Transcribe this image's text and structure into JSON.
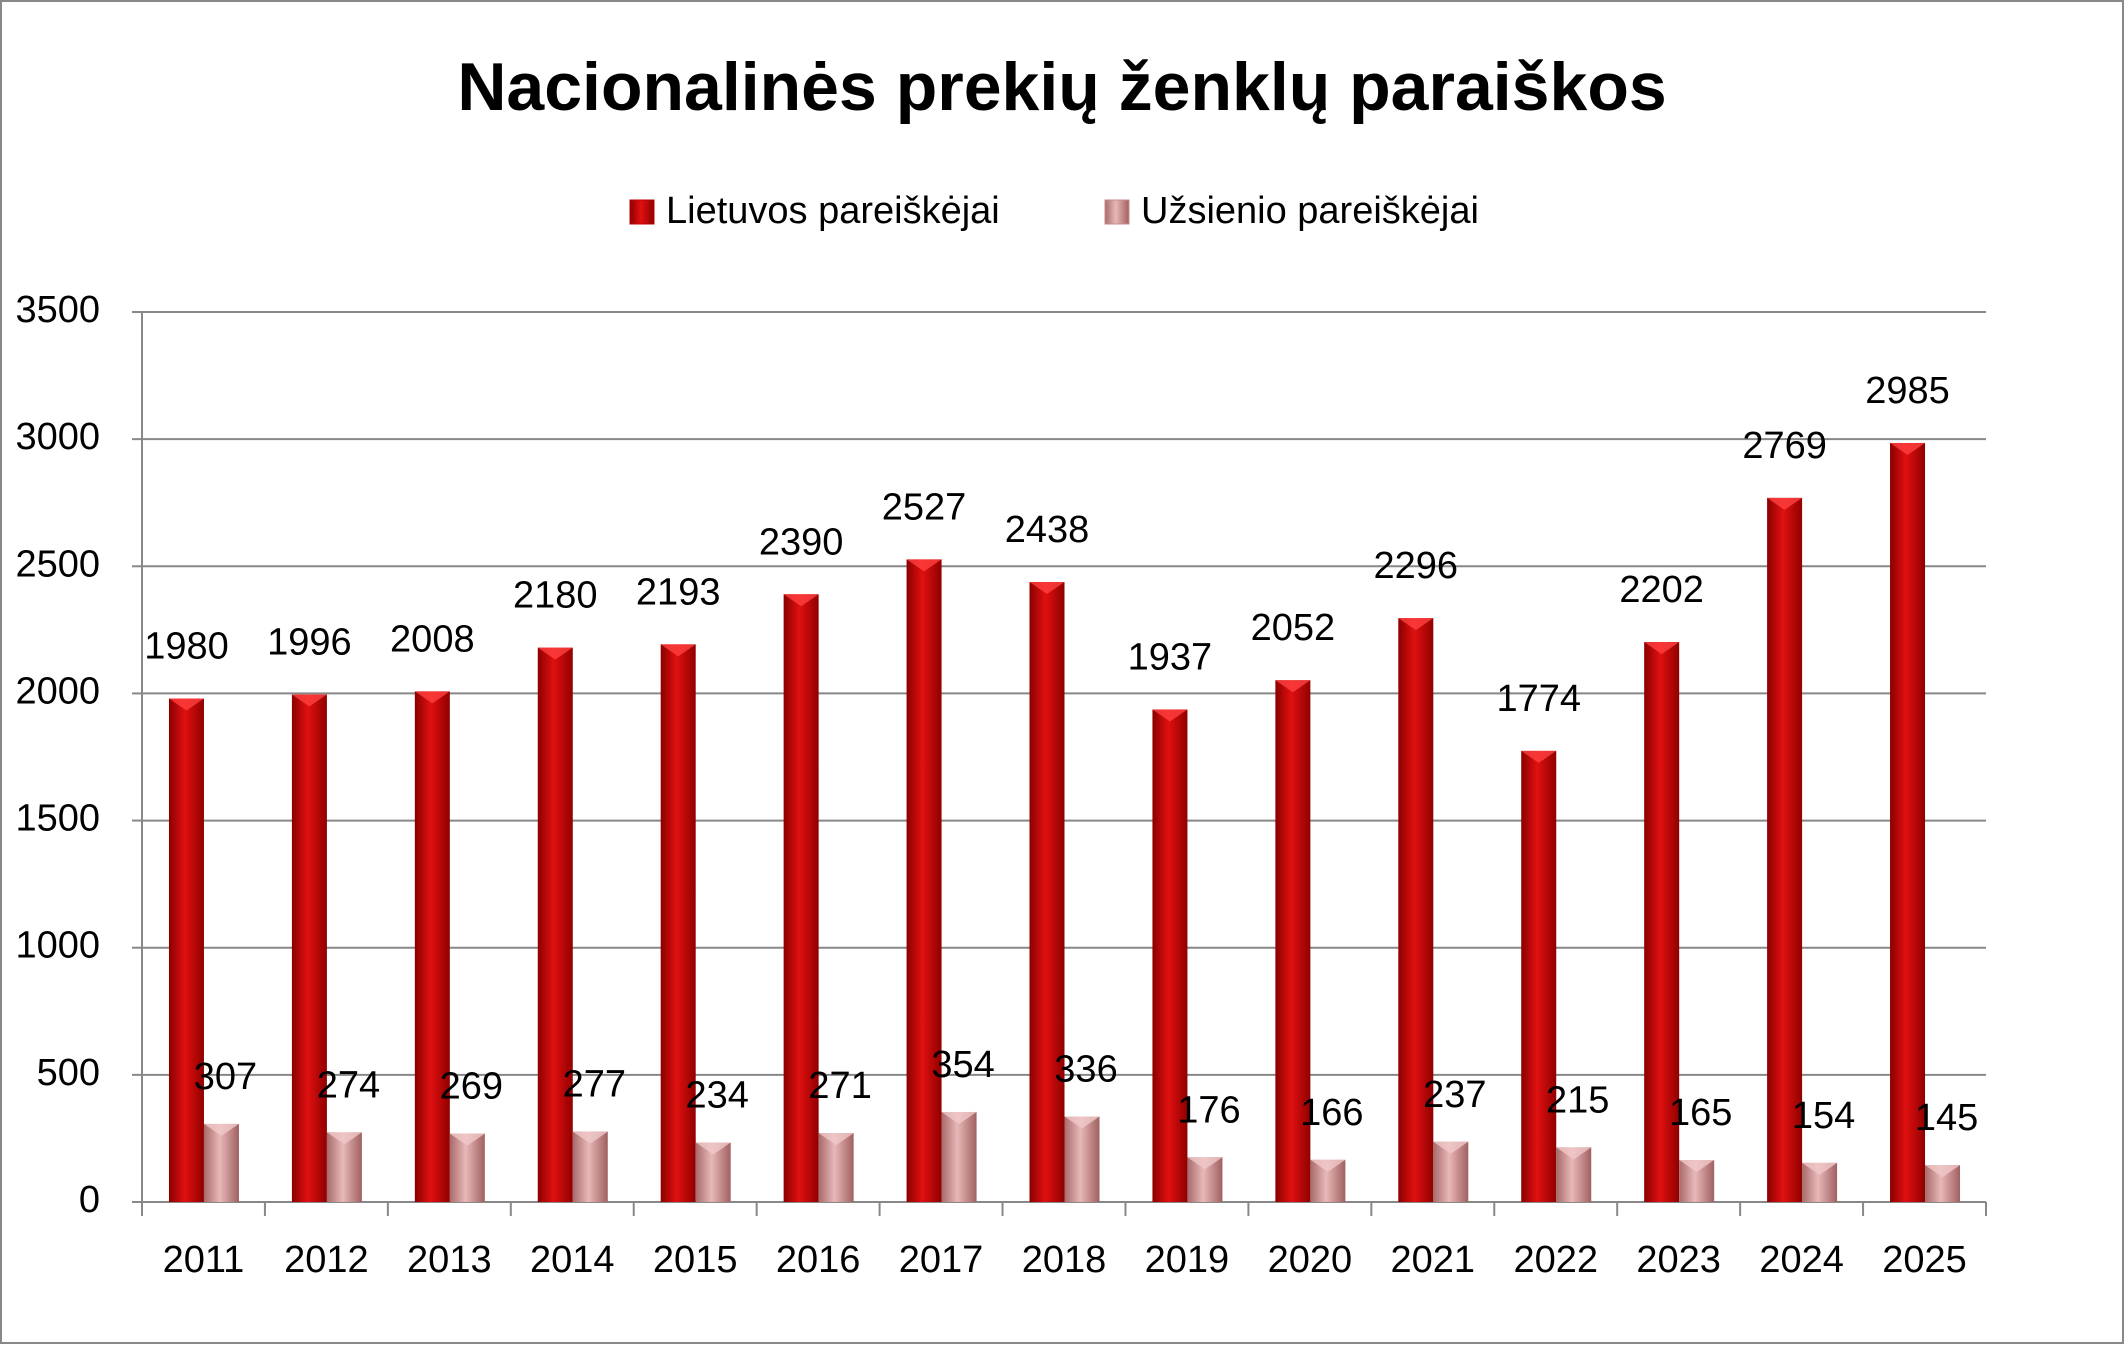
{
  "chart_data": {
    "type": "bar",
    "title": "Nacionalinės prekių ženklų paraiškos",
    "categories": [
      "2011",
      "2012",
      "2013",
      "2014",
      "2015",
      "2016",
      "2017",
      "2018",
      "2019",
      "2020",
      "2021",
      "2022",
      "2023",
      "2024",
      "2025"
    ],
    "series": [
      {
        "name": "Lietuvos pareiškėjai",
        "color": "#c00000",
        "values": [
          1980,
          1996,
          2008,
          2180,
          2193,
          2390,
          2527,
          2438,
          1937,
          2052,
          2296,
          1774,
          2202,
          2769,
          2985
        ]
      },
      {
        "name": "Užsienio pareiškėjai",
        "color": "#c88a8a",
        "values": [
          307,
          274,
          269,
          277,
          234,
          271,
          354,
          336,
          176,
          166,
          237,
          215,
          165,
          154,
          145
        ]
      }
    ],
    "ylim": [
      0,
      3500
    ],
    "yticks": [
      0,
      500,
      1000,
      1500,
      2000,
      2500,
      3000,
      3500
    ],
    "grid": true,
    "legend": "top"
  }
}
